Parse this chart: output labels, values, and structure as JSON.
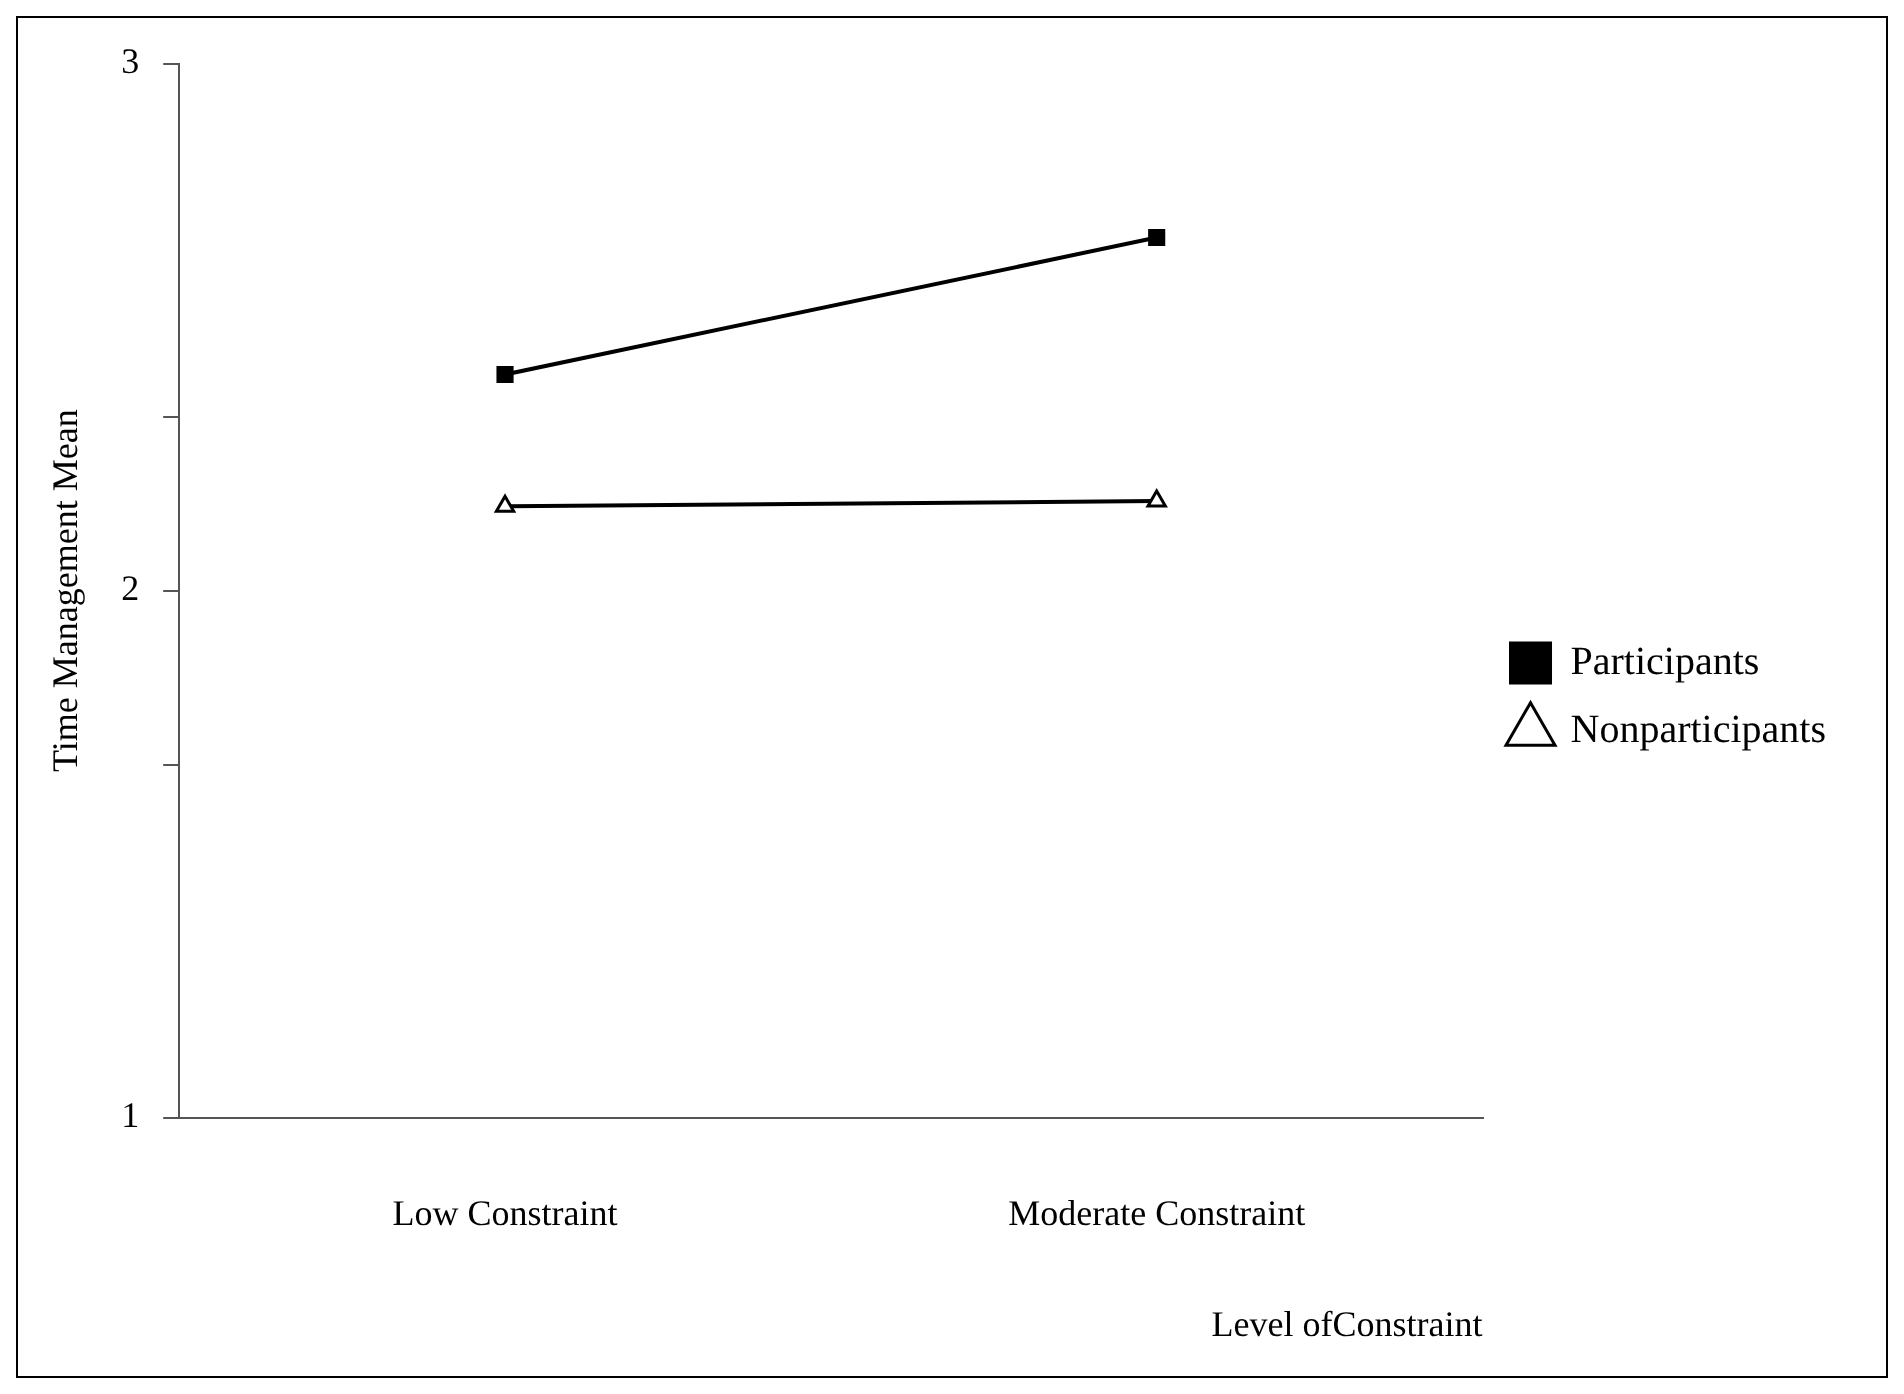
{
  "chart_data": {
    "type": "line",
    "ylabel": "Time Management Mean",
    "xlabel": "Level ofConstraint",
    "categories": [
      "Low Constraint",
      "Moderate Constraint"
    ],
    "series": [
      {
        "name": "Participants",
        "color": "#000000",
        "values": [
          2.41,
          2.67
        ],
        "marker": "square"
      },
      {
        "name": "Nonparticipants",
        "color": "#000000",
        "values": [
          2.16,
          2.17
        ],
        "marker": "triangle"
      }
    ],
    "ylim": [
      1,
      3
    ],
    "yticks": [
      1,
      {
        "value": 1.67,
        "label": null
      },
      2,
      {
        "value": 2.33,
        "label": null
      },
      3
    ],
    "grid": false,
    "legend": "right",
    "line_style": "solid"
  }
}
